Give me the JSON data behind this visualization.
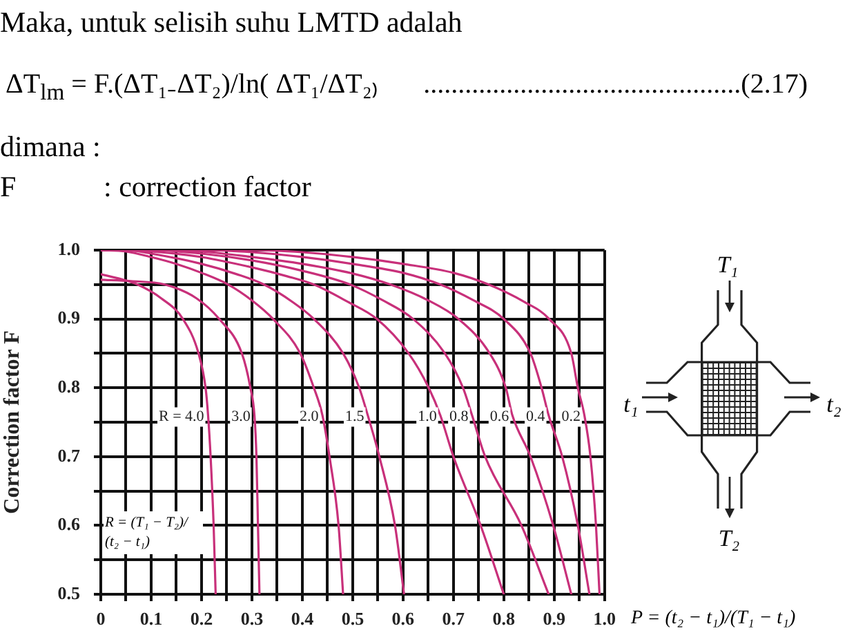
{
  "chart_data": {
    "type": "line",
    "ylabel": "Correction factor F",
    "xlabel": "P = (t₂ − t₁)/(T₁ − t₁)",
    "annotations": [
      "Maka, untuk selisih suhu LMTD adalah",
      "ΔT$_{lm}$ = F.(ΔT₁₋ΔT₂)/ln( ΔT₁/ΔT₂₎",
      "..............................................(2.17)",
      "dimana :",
      "F\t: correction factor",
      "T₁",
      "t₁",
      "t₂",
      "T₂",
      "R = (T₁ − T₂)/(t₂ − t₁)"
    ],
    "xlim": [
      0,
      1
    ],
    "ylim": [
      0.5,
      1
    ],
    "xticks": [
      0,
      {
        "value": 0.05,
        "label": null
      },
      0.1,
      {
        "value": 0.15,
        "label": null
      },
      0.2,
      {
        "value": 0.25,
        "label": null
      },
      0.3,
      {
        "value": 0.35,
        "label": null
      },
      0.4,
      {
        "value": 0.45,
        "label": null
      },
      0.5,
      {
        "value": 0.55,
        "label": null
      },
      0.6,
      {
        "value": 0.65,
        "label": null
      },
      0.7,
      {
        "value": 0.75,
        "label": null
      },
      0.8,
      {
        "value": 0.85,
        "label": null
      },
      0.9,
      {
        "value": 0.95,
        "label": null
      },
      {
        "value": 1,
        "label": "1.0"
      }
    ],
    "yticks": [
      0.5,
      {
        "value": 0.55,
        "label": null
      },
      0.6,
      {
        "value": 0.65,
        "label": null
      },
      0.7,
      {
        "value": 0.75,
        "label": null
      },
      0.8,
      {
        "value": 0.85,
        "label": null
      },
      0.9,
      {
        "value": 0.95,
        "label": null
      },
      {
        "value": 1,
        "label": "1.0"
      }
    ],
    "grid": true,
    "series": [
      {
        "name": "R = 4.0",
        "color": "#c8307a",
        "x": [
          0,
          0.04,
          0.073,
          0.12,
          0.163,
          0.194,
          0.208,
          0.213,
          0.218,
          0.224,
          0.228
        ],
        "values": [
          0.965,
          0.958,
          0.95,
          0.93,
          0.9,
          0.85,
          0.8,
          0.76,
          0.7,
          0.6,
          0.5
        ]
      },
      {
        "name": "3.0",
        "color": "#c8307a",
        "x": [
          0,
          0.06,
          0.127,
          0.19,
          0.235,
          0.28,
          0.297,
          0.305,
          0.309,
          0.312,
          0.315
        ],
        "values": [
          0.957,
          0.955,
          0.95,
          0.93,
          0.9,
          0.85,
          0.8,
          0.76,
          0.7,
          0.6,
          0.5
        ]
      },
      {
        "name": "2.0",
        "color": "#c8307a",
        "x": [
          0,
          0.05,
          0.1,
          0.15,
          0.2,
          0.253,
          0.3,
          0.342,
          0.396,
          0.423,
          0.44,
          0.454,
          0.472,
          0.481
        ],
        "values": [
          1,
          0.998,
          0.99,
          0.98,
          0.967,
          0.95,
          0.927,
          0.9,
          0.85,
          0.8,
          0.76,
          0.7,
          0.6,
          0.5
        ]
      },
      {
        "name": "1.5",
        "color": "#c8307a",
        "x": [
          0,
          0.05,
          0.1,
          0.2,
          0.27,
          0.324,
          0.38,
          0.423,
          0.481,
          0.513,
          0.53,
          0.553,
          0.584,
          0.602
        ],
        "values": [
          1,
          1,
          0.995,
          0.98,
          0.965,
          0.95,
          0.925,
          0.9,
          0.85,
          0.8,
          0.76,
          0.7,
          0.6,
          0.5
        ]
      },
      {
        "name": "1.0",
        "color": "#c8307a",
        "x": [
          0,
          0.1,
          0.2,
          0.3,
          0.37,
          0.423,
          0.49,
          0.548,
          0.611,
          0.651,
          0.674,
          0.7,
          0.754,
          0.8
        ],
        "values": [
          1,
          0.998,
          0.99,
          0.975,
          0.962,
          0.95,
          0.925,
          0.9,
          0.85,
          0.8,
          0.76,
          0.7,
          0.6,
          0.5
        ]
      },
      {
        "name": "0.8",
        "color": "#c8307a",
        "x": [
          0,
          0.1,
          0.2,
          0.3,
          0.4,
          0.495,
          0.56,
          0.62,
          0.683,
          0.719,
          0.737,
          0.763,
          0.835,
          0.889
        ],
        "values": [
          1,
          1,
          0.995,
          0.985,
          0.97,
          0.95,
          0.927,
          0.9,
          0.85,
          0.8,
          0.76,
          0.7,
          0.6,
          0.5
        ]
      },
      {
        "name": "0.6",
        "color": "#c8307a",
        "x": [
          0,
          0.1,
          0.2,
          0.3,
          0.4,
          0.5,
          0.575,
          0.65,
          0.71,
          0.772,
          0.804,
          0.817,
          0.853,
          0.898,
          0.934
        ],
        "values": [
          1,
          1,
          0.998,
          0.99,
          0.98,
          0.966,
          0.95,
          0.927,
          0.9,
          0.85,
          0.8,
          0.76,
          0.7,
          0.6,
          0.5
        ]
      },
      {
        "name": "0.4",
        "color": "#c8307a",
        "x": [
          0,
          0.2,
          0.3,
          0.4,
          0.5,
          0.6,
          0.674,
          0.74,
          0.8,
          0.853,
          0.875,
          0.889,
          0.916,
          0.947,
          0.97
        ],
        "values": [
          1,
          1,
          0.997,
          0.99,
          0.98,
          0.967,
          0.95,
          0.927,
          0.9,
          0.85,
          0.8,
          0.76,
          0.7,
          0.6,
          0.5
        ]
      },
      {
        "name": "0.2",
        "color": "#c8307a",
        "x": [
          0,
          0.3,
          0.4,
          0.5,
          0.6,
          0.7,
          0.77,
          0.84,
          0.89,
          0.934,
          0.947,
          0.96,
          0.972,
          0.983,
          0.99
        ],
        "values": [
          1,
          1,
          0.997,
          0.99,
          0.98,
          0.967,
          0.95,
          0.925,
          0.9,
          0.85,
          0.8,
          0.76,
          0.7,
          0.6,
          0.5
        ]
      }
    ]
  }
}
